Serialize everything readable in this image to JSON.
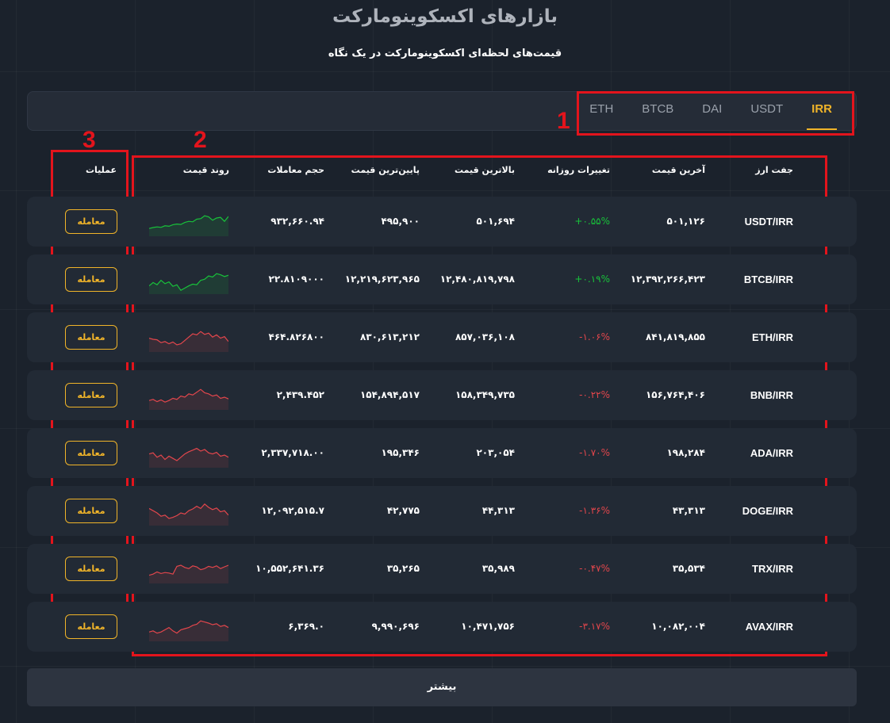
{
  "page": {
    "title": "بازارهای اکسکوینومارکت",
    "subtitle": "قیمت‌های لحظه‌ای اکسکوینومارکت در یک نگاه"
  },
  "tabs": [
    {
      "label": "IRR",
      "active": true
    },
    {
      "label": "USDT",
      "active": false
    },
    {
      "label": "DAI",
      "active": false
    },
    {
      "label": "BTCB",
      "active": false
    },
    {
      "label": "ETH",
      "active": false
    }
  ],
  "annotations": {
    "one": "1",
    "two": "2",
    "three": "3"
  },
  "columns": {
    "pair": "جفت ارز",
    "last_price": "آخرین قیمت",
    "daily_change": "تغییرات روزانه",
    "high": "بالاترین قیمت",
    "low": "پایین‌ترین قیمت",
    "volume": "حجم معاملات",
    "trend": "روند قیمت",
    "actions": "عملیات"
  },
  "rows": [
    {
      "pair": "USDT/IRR",
      "last": "۵۰۱,۱۲۶",
      "change": "+۰.۵۵%",
      "high": "۵۰۱,۶۹۴",
      "low": "۴۹۵,۹۰۰",
      "volume": "۹۳۲,۶۶۰.۹۴",
      "trade": "معامله",
      "up": true
    },
    {
      "pair": "BTCB/IRR",
      "last": "۱۲,۳۹۲,۲۶۶,۴۲۳",
      "change": "+۰.۱۹%",
      "high": "۱۲,۴۸۰,۸۱۹,۷۹۸",
      "low": "۱۲,۲۱۹,۶۲۳,۹۶۵",
      "volume": "۲۲.۸۱۰۹۰۰۰",
      "trade": "معامله",
      "up": true
    },
    {
      "pair": "ETH/IRR",
      "last": "۸۴۱,۸۱۹,۸۵۵",
      "change": "-۱.۰۶%",
      "high": "۸۵۷,۰۳۶,۱۰۸",
      "low": "۸۳۰,۶۱۳,۲۱۲",
      "volume": "۴۶۴.۸۲۶۸۰۰",
      "trade": "معامله",
      "up": false
    },
    {
      "pair": "BNB/IRR",
      "last": "۱۵۶,۷۶۴,۴۰۶",
      "change": "-۰.۲۲%",
      "high": "۱۵۸,۳۴۹,۷۳۵",
      "low": "۱۵۴,۸۹۴,۵۱۷",
      "volume": "۲,۴۳۹.۴۵۲",
      "trade": "معامله",
      "up": false
    },
    {
      "pair": "ADA/IRR",
      "last": "۱۹۸,۲۸۴",
      "change": "-۱.۷۰%",
      "high": "۲۰۳,۰۵۴",
      "low": "۱۹۵,۳۴۶",
      "volume": "۲,۳۳۷,۷۱۸.۰۰",
      "trade": "معامله",
      "up": false
    },
    {
      "pair": "DOGE/IRR",
      "last": "۴۳,۳۱۳",
      "change": "-۱.۳۶%",
      "high": "۴۴,۳۱۳",
      "low": "۴۲,۷۷۵",
      "volume": "۱۲,۰۹۲,۵۱۵.۷",
      "trade": "معامله",
      "up": false
    },
    {
      "pair": "TRX/IRR",
      "last": "۳۵,۵۳۴",
      "change": "-۰.۴۷%",
      "high": "۳۵,۹۸۹",
      "low": "۳۵,۲۶۵",
      "volume": "۱۰,۵۵۲,۶۴۱.۳۶",
      "trade": "معامله",
      "up": false
    },
    {
      "pair": "AVAX/IRR",
      "last": "۱۰,۰۸۲,۰۰۴",
      "change": "-۳.۱۷%",
      "high": "۱۰,۴۷۱,۷۵۶",
      "low": "۹,۹۹۰,۶۹۶",
      "volume": "۶,۳۶۹.۰",
      "trade": "معامله",
      "up": false
    }
  ],
  "sparklines": [
    [
      0.28,
      0.32,
      0.35,
      0.33,
      0.4,
      0.38,
      0.45,
      0.48,
      0.46,
      0.55,
      0.6,
      0.58,
      0.7,
      0.72,
      0.85,
      0.8,
      0.65,
      0.75,
      0.78,
      0.6,
      0.82
    ],
    [
      0.3,
      0.45,
      0.35,
      0.55,
      0.4,
      0.48,
      0.28,
      0.35,
      0.1,
      0.2,
      0.3,
      0.38,
      0.35,
      0.55,
      0.6,
      0.75,
      0.7,
      0.85,
      0.8,
      0.72,
      0.78
    ],
    [
      0.55,
      0.5,
      0.48,
      0.35,
      0.4,
      0.3,
      0.38,
      0.25,
      0.3,
      0.45,
      0.6,
      0.75,
      0.7,
      0.85,
      0.72,
      0.78,
      0.6,
      0.7,
      0.55,
      0.62,
      0.4
    ],
    [
      0.35,
      0.4,
      0.3,
      0.38,
      0.28,
      0.35,
      0.45,
      0.4,
      0.55,
      0.5,
      0.65,
      0.6,
      0.72,
      0.85,
      0.7,
      0.65,
      0.55,
      0.6,
      0.45,
      0.5,
      0.42
    ],
    [
      0.55,
      0.6,
      0.4,
      0.5,
      0.3,
      0.45,
      0.35,
      0.25,
      0.4,
      0.55,
      0.65,
      0.72,
      0.8,
      0.68,
      0.75,
      0.6,
      0.55,
      0.62,
      0.45,
      0.5,
      0.4
    ],
    [
      0.7,
      0.6,
      0.5,
      0.35,
      0.4,
      0.25,
      0.3,
      0.38,
      0.5,
      0.45,
      0.6,
      0.68,
      0.8,
      0.7,
      0.9,
      0.75,
      0.65,
      0.72,
      0.55,
      0.6,
      0.4
    ],
    [
      0.3,
      0.35,
      0.45,
      0.38,
      0.42,
      0.4,
      0.35,
      0.7,
      0.75,
      0.65,
      0.6,
      0.72,
      0.68,
      0.55,
      0.6,
      0.7,
      0.65,
      0.72,
      0.6,
      0.68,
      0.75
    ],
    [
      0.35,
      0.4,
      0.3,
      0.35,
      0.45,
      0.55,
      0.4,
      0.3,
      0.45,
      0.5,
      0.55,
      0.65,
      0.7,
      0.85,
      0.8,
      0.75,
      0.68,
      0.72,
      0.6,
      0.65,
      0.55
    ]
  ],
  "colors": {
    "up": "#18c23a",
    "down": "#e2464c",
    "accent": "#f0b429",
    "annotation": "#e3141c"
  },
  "more_label": "بیشتر"
}
